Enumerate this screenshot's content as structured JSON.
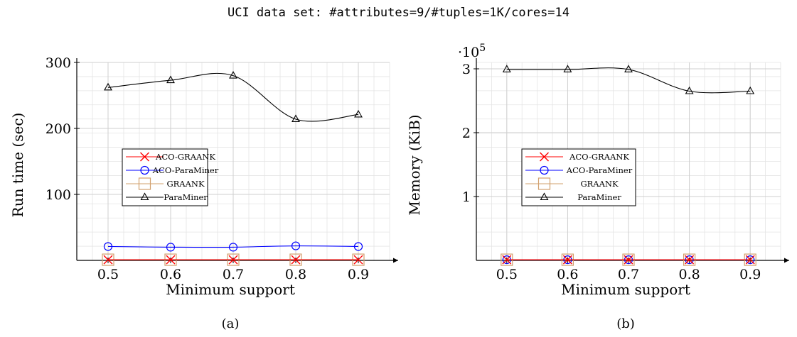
{
  "title": "UCI data set:  #attributes=9/#tuples=1K/cores=14",
  "chart_data": [
    {
      "type": "line",
      "caption": "(a)",
      "xlabel": "Minimum support",
      "ylabel": "Run time (sec)",
      "x": [
        0.5,
        0.6,
        0.7,
        0.8,
        0.9
      ],
      "xlim": [
        0.45,
        0.95
      ],
      "ylim": [
        0,
        300
      ],
      "xticks": [
        "0.5",
        "0.6",
        "0.7",
        "0.8",
        "0.9"
      ],
      "yticks": [
        100,
        200,
        300
      ],
      "ytick_labels": [
        "100",
        "200",
        "300"
      ],
      "grid": true,
      "legend_position": "center-left",
      "series": [
        {
          "name": "ACO-GRAANK",
          "color": "#ff0000",
          "marker": "x",
          "values": [
            1,
            1,
            1,
            1,
            1
          ]
        },
        {
          "name": "ACO-ParaMiner",
          "color": "#0000ff",
          "marker": "circle",
          "values": [
            21,
            20,
            20,
            22,
            21
          ]
        },
        {
          "name": "GRAANK",
          "color": "#d2a06e",
          "marker": "square",
          "values": [
            1,
            1,
            1,
            1,
            1
          ]
        },
        {
          "name": "ParaMiner",
          "color": "#000000",
          "marker": "triangle",
          "values": [
            262,
            273,
            280,
            214,
            221
          ]
        }
      ]
    },
    {
      "type": "line",
      "caption": "(b)",
      "xlabel": "Minimum support",
      "ylabel": "Memory (KiB)",
      "scale_base": "·10",
      "scale_exp": "5",
      "x": [
        0.5,
        0.6,
        0.7,
        0.8,
        0.9
      ],
      "xlim": [
        0.45,
        0.95
      ],
      "ylim": [
        0,
        3.1
      ],
      "xticks": [
        "0.5",
        "0.6",
        "0.7",
        "0.8",
        "0.9"
      ],
      "yticks": [
        1,
        2,
        3
      ],
      "ytick_labels": [
        "1",
        "2",
        "3"
      ],
      "grid": true,
      "legend_position": "center-left",
      "series": [
        {
          "name": "ACO-GRAANK",
          "color": "#ff0000",
          "marker": "x",
          "values": [
            0.01,
            0.01,
            0.01,
            0.01,
            0.01
          ]
        },
        {
          "name": "ACO-ParaMiner",
          "color": "#0000ff",
          "marker": "circle",
          "values": [
            0.01,
            0.01,
            0.01,
            0.01,
            0.01
          ]
        },
        {
          "name": "GRAANK",
          "color": "#d2a06e",
          "marker": "square",
          "values": [
            0.01,
            0.01,
            0.01,
            0.01,
            0.01
          ]
        },
        {
          "name": "ParaMiner",
          "color": "#000000",
          "marker": "triangle",
          "values": [
            2.99,
            2.99,
            2.99,
            2.65,
            2.65
          ]
        }
      ]
    }
  ]
}
